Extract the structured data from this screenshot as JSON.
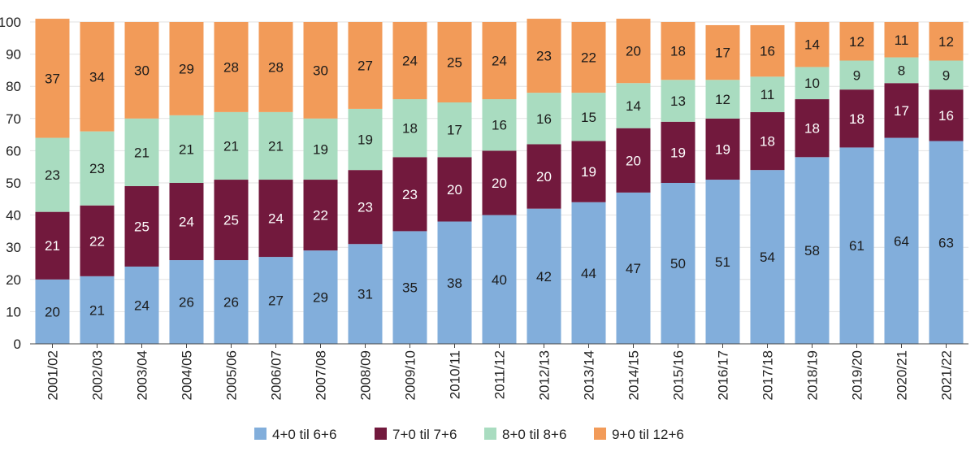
{
  "chart_data": {
    "type": "bar",
    "stacked": true,
    "title": "",
    "xlabel": "",
    "ylabel": "",
    "ylim": [
      0,
      100
    ],
    "yticks": [
      0,
      10,
      20,
      30,
      40,
      50,
      60,
      70,
      80,
      90,
      100
    ],
    "grid": true,
    "legend_position": "bottom",
    "categories": [
      "2001/02",
      "2002/03",
      "2003/04",
      "2004/05",
      "2005/06",
      "2006/07",
      "2007/08",
      "2008/09",
      "2009/10",
      "2010/11",
      "2011/12",
      "2012/13",
      "2013/14",
      "2014/15",
      "2015/16",
      "2016/17",
      "2017/18",
      "2018/19",
      "2019/20",
      "2020/21",
      "2021/22"
    ],
    "series": [
      {
        "name": "4+0 til 6+6",
        "color": "#82aedb",
        "label_color": "#1a1a1a",
        "values": [
          20,
          21,
          24,
          26,
          26,
          27,
          29,
          31,
          35,
          38,
          40,
          42,
          44,
          47,
          50,
          51,
          54,
          58,
          61,
          64,
          63
        ]
      },
      {
        "name": "7+0 til 7+6",
        "color": "#72193d",
        "label_color": "#ffffff",
        "values": [
          21,
          22,
          25,
          24,
          25,
          24,
          22,
          23,
          23,
          20,
          20,
          20,
          19,
          20,
          19,
          19,
          18,
          18,
          18,
          17,
          16
        ]
      },
      {
        "name": "8+0 til 8+6",
        "color": "#a9dcc0",
        "label_color": "#1a1a1a",
        "values": [
          23,
          23,
          21,
          21,
          21,
          21,
          19,
          19,
          18,
          17,
          16,
          16,
          15,
          14,
          13,
          12,
          11,
          10,
          9,
          8,
          9
        ]
      },
      {
        "name": "9+0 til 12+6",
        "color": "#f29b59",
        "label_color": "#1a1a1a",
        "values": [
          37,
          34,
          30,
          29,
          28,
          28,
          30,
          27,
          24,
          25,
          24,
          23,
          22,
          20,
          18,
          17,
          16,
          14,
          12,
          11,
          12
        ]
      }
    ]
  }
}
